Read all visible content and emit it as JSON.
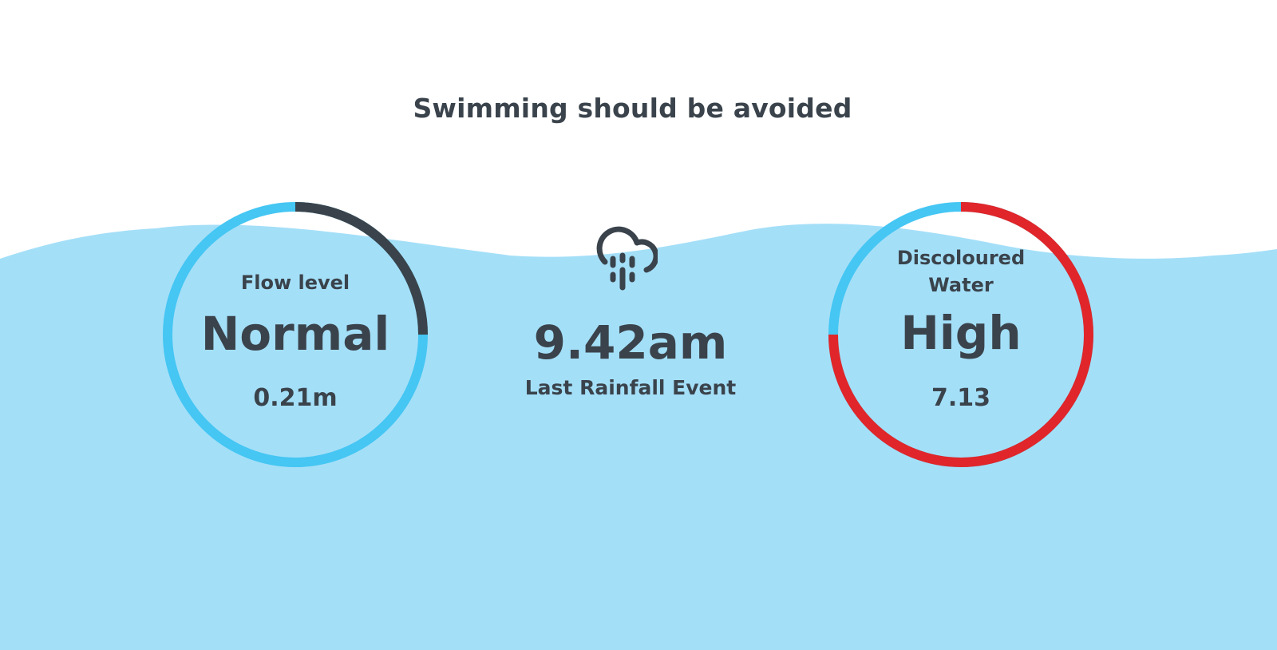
{
  "headline": "Swimming should be avoided",
  "colors": {
    "water": "#a4dff8",
    "ring_normal": "#45c6f3",
    "ring_dark": "#3a434b",
    "ring_alert": "#e0262a",
    "text": "#3a434b"
  },
  "flow": {
    "label": "Flow level",
    "status": "Normal",
    "value": "0.21m",
    "level_fraction": 0.25
  },
  "rainfall": {
    "icon": "rain-cloud-icon",
    "time": "9.42am",
    "label": "Last Rainfall Event"
  },
  "discoloured": {
    "label_line1": "Discoloured",
    "label_line2": "Water",
    "status": "High",
    "value": "7.13",
    "level_fraction": 0.75
  }
}
